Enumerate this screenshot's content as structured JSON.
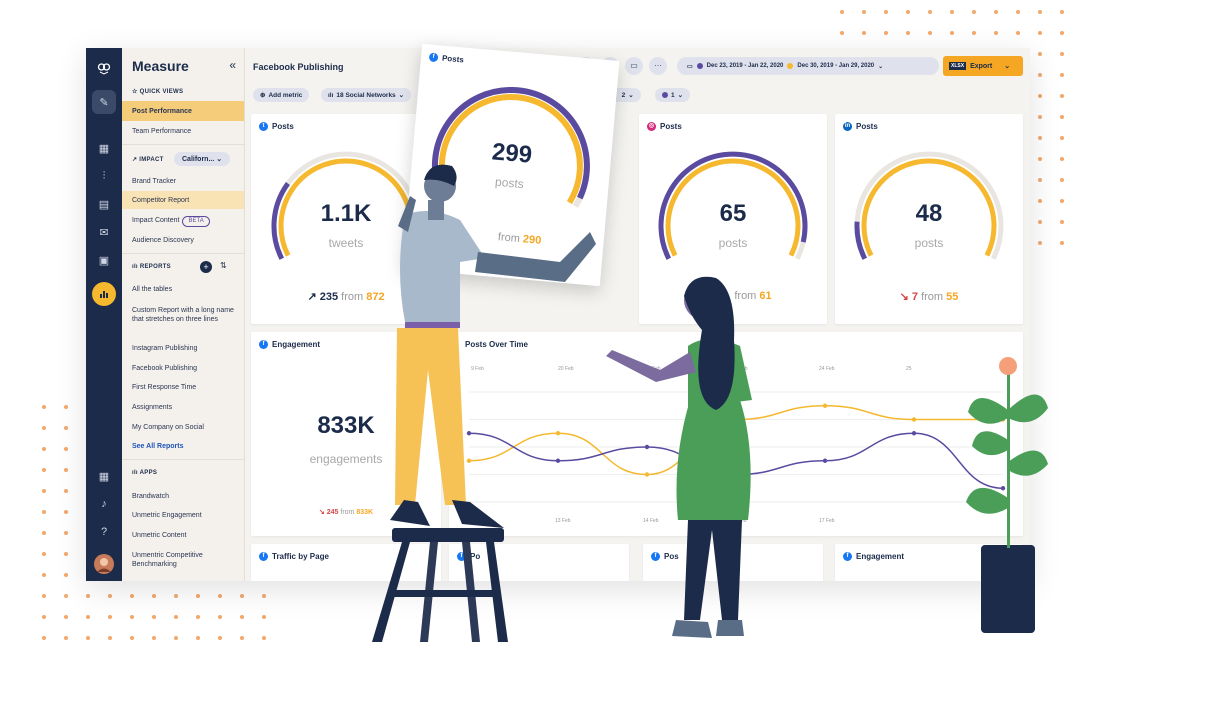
{
  "sidebar": {
    "title": "Measure",
    "collapse_icon": "«",
    "quick_views_label": "QUICK VIEWS",
    "quick_views": [
      "Post Performance",
      "Team Performance"
    ],
    "impact_label": "IMPACT",
    "impact_select": "Californ...",
    "impact_items": [
      "Brand Tracker",
      "Competitor Report",
      "Impact Content",
      "Audience Discovery"
    ],
    "beta_label": "BETA",
    "reports_label": "REPORTS",
    "reports": [
      "All the tables",
      "Custom Report with a long name that stretches on three lines",
      "Instagram Publishing",
      "Facebook Publishing",
      "First Response Time",
      "Assignments",
      "My Company on Social"
    ],
    "see_all": "See All Reports",
    "apps_label": "APPS",
    "apps": [
      "Brandwatch",
      "Unmetric Engagement",
      "Unmetric Content",
      "Unmentric Competitive Benchmarking"
    ]
  },
  "header": {
    "title": "Facebook Publishing",
    "date_range_1": "Dec 23, 2019 - Jan 22, 2020",
    "date_range_2": "Dec 30, 2019 - Jan 29, 2020",
    "export_label": "Export",
    "xlsx": "XLSX",
    "more_icon": "···"
  },
  "filters": {
    "add_metric": "Add metric",
    "networks": "18 Social Networks",
    "chip_2": "2",
    "chip_1": "1"
  },
  "colors": {
    "navy": "#1c2b4a",
    "purple": "#5b4ba0",
    "gold": "#f5b82e",
    "orange": "#f5a623"
  },
  "cards": {
    "tw": {
      "title": "Posts",
      "value": "1.1K",
      "unit": "tweets",
      "current": "235",
      "from_label": "from",
      "previous": "872",
      "fill": 0.27
    },
    "fb_posts": {
      "title": "Posts",
      "value": "299",
      "unit": "posts",
      "from_label": "from",
      "previous": "290",
      "fill": 0.97
    },
    "ig": {
      "title": "Posts",
      "value": "65",
      "unit": "posts",
      "from_label": "from",
      "previous": "61",
      "fill": 0.94
    },
    "li": {
      "title": "Posts",
      "value": "48",
      "unit": "posts",
      "current": "7",
      "from_label": "from",
      "previous": "55",
      "fill": 0.13
    },
    "engagement": {
      "title": "Engagement",
      "value": "833K",
      "unit": "engagements",
      "current": "245",
      "from_label": "from",
      "previous": "833K"
    },
    "over_time": {
      "title": "Posts Over Time"
    },
    "traffic": {
      "title": "Traffic by Page"
    },
    "b2": {
      "title": "Po"
    },
    "b3": {
      "title": "Pos"
    },
    "b4": {
      "title": "Engagement"
    }
  },
  "chart_data": {
    "type": "line",
    "title": "Posts Over Time",
    "x_ticks_top": [
      "9 Feb",
      "20 Feb",
      "21 Feb",
      "23 Feb",
      "24 Feb",
      "25"
    ],
    "x_ticks_bottom": [
      "13 Feb",
      "14 Feb",
      "16 Feb",
      "17 Feb"
    ],
    "series": [
      {
        "color": "#f5b82e",
        "values": [
          3,
          5,
          2,
          6,
          7,
          6,
          6
        ]
      },
      {
        "color": "#5b4ba0",
        "values": [
          5,
          3,
          4,
          2,
          3,
          5,
          1
        ]
      }
    ]
  }
}
